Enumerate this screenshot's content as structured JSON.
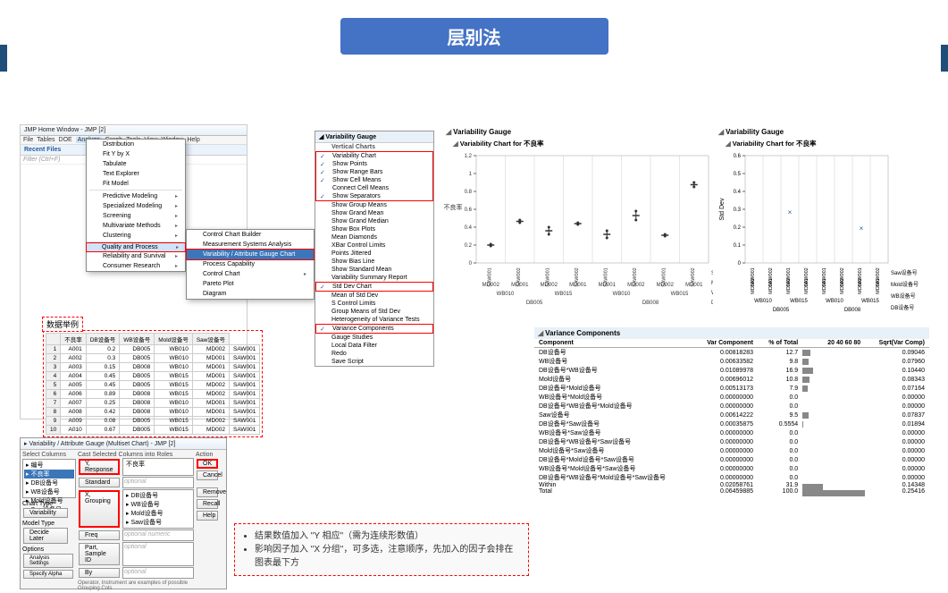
{
  "slide": {
    "title": "层别法"
  },
  "jmp_window": {
    "title": "JMP Home Window - JMP [2]",
    "menus": [
      "File",
      "Tables",
      "DOE",
      "Analyze",
      "Graph",
      "Tools",
      "View",
      "Window",
      "Help"
    ],
    "recent_label": "Recent Files",
    "filter_placeholder": "Filter (Ctrl+F)"
  },
  "analyze_menu": {
    "items": [
      "Distribution",
      "Fit Y by X",
      "Tabulate",
      "Text Explorer",
      "Fit Model",
      "",
      "Predictive Modeling",
      "Specialized Modeling",
      "Screening",
      "Multivariate Methods",
      "Clustering",
      "",
      "Quality and Process",
      "Reliability and Survival",
      "Consumer Research"
    ],
    "highlight": "Quality and Process"
  },
  "qp_submenu": {
    "items": [
      "Control Chart Builder",
      "Measurement Systems Analysis",
      "Variability / Attribute Gauge Chart",
      "Process Capability",
      "Control Chart",
      "Pareto Plot",
      "Diagram"
    ],
    "highlight": "Variability / Attribute Gauge Chart"
  },
  "var_menu": {
    "header": "Variability Gauge",
    "subheader": "Vertical Charts",
    "top_items": [
      {
        "label": "Variability Chart",
        "chk": true
      },
      {
        "label": "Show Points",
        "chk": true
      },
      {
        "label": "Show Range Bars",
        "chk": true
      },
      {
        "label": "Show Cell Means",
        "chk": true
      },
      {
        "label": "Connect Cell Means",
        "chk": false
      },
      {
        "label": "Show Separators",
        "chk": true
      }
    ],
    "mid_items": [
      "Show Group Means",
      "Show Grand Mean",
      "Show Grand Median",
      "Show Box Plots",
      "Mean Diamonds",
      "XBar Control Limits",
      "Points Jittered",
      "Show Bias Line",
      "Show Standard Mean",
      "Variability Summary Report"
    ],
    "std_item": "Std Dev Chart",
    "after_std": [
      "Mean of Std Dev",
      "S Control Limits",
      "Group Means of Std Dev",
      "Heterogeneity of Variance Tests"
    ],
    "vc_item": "Variance Components",
    "bottom_items": [
      "Gauge Studies",
      "Local Data Filter",
      "Redo",
      "Save Script"
    ]
  },
  "data_example": {
    "label": "数据举例",
    "headers": [
      "",
      "不良率",
      "DB设备号",
      "WB设备号",
      "Mold设备号",
      "Saw设备号"
    ],
    "rows": [
      [
        "1",
        "A001",
        "0.2",
        "DB005",
        "WB010",
        "MD002",
        "SAW001"
      ],
      [
        "2",
        "A002",
        "0.3",
        "DB005",
        "WB010",
        "MD001",
        "SAW001"
      ],
      [
        "3",
        "A003",
        "0.15",
        "DB008",
        "WB010",
        "MD001",
        "SAW001"
      ],
      [
        "4",
        "A004",
        "0.45",
        "DB005",
        "WB015",
        "MD001",
        "SAW001"
      ],
      [
        "5",
        "A005",
        "0.45",
        "DB005",
        "WB015",
        "MD002",
        "SAW001"
      ],
      [
        "6",
        "A006",
        "0.89",
        "DB008",
        "WB015",
        "MD002",
        "SAW001"
      ],
      [
        "7",
        "A007",
        "0.25",
        "DB008",
        "WB010",
        "MD001",
        "SAW001"
      ],
      [
        "8",
        "A008",
        "0.42",
        "DB008",
        "WB010",
        "MD001",
        "SAW001"
      ],
      [
        "9",
        "A009",
        "0.08",
        "DB005",
        "WB015",
        "MD002",
        "SAW001"
      ],
      [
        "10",
        "A010",
        "0.67",
        "DB005",
        "WB015",
        "MD002",
        "SAW001"
      ]
    ]
  },
  "chart1": {
    "title": "Variability Gauge",
    "sub": "Variability Chart for 不良率",
    "ylabel": "不良率",
    "ymin": 0,
    "ymax": 1.2,
    "yticks": [
      0,
      0.2,
      0.4,
      0.6,
      0.8,
      1,
      1.2
    ],
    "saw": [
      "SAW001",
      "SAW002",
      "SAW001",
      "SAW002",
      "SAW001",
      "SAW002",
      "SAW001",
      "SAW002"
    ],
    "mold": [
      "MD002",
      "MD001",
      "MD002",
      "MD001",
      "MD001",
      "MD002",
      "MD002",
      "MD001"
    ],
    "wb": [
      "WB010",
      "WB015",
      "WB010",
      "WB015"
    ],
    "db": [
      "DB005",
      "DB008"
    ],
    "axis_labels": [
      "Saw设备号",
      "Mold设备号",
      "WB设备号",
      "DB设备号"
    ],
    "groups": [
      [
        0.19,
        0.21
      ],
      [
        0.45,
        0.48
      ],
      [
        0.32,
        0.4
      ],
      [
        0.45,
        0.43
      ],
      [
        0.28,
        0.36
      ],
      [
        0.48,
        0.58
      ],
      [
        0.3,
        0.32
      ],
      [
        0.9,
        0.85
      ]
    ]
  },
  "chart2": {
    "title": "Variability Gauge",
    "sub": "Variability Chart for 不良率",
    "ylabel": "Std Dev",
    "ymin": 0,
    "ymax": 0.6,
    "yticks": [
      0,
      0.1,
      0.2,
      0.3,
      0.4,
      0.5,
      0.6
    ],
    "points": [
      null,
      null,
      0.28,
      null,
      null,
      null,
      0.19,
      null
    ],
    "axis_labels": [
      "Saw设备号",
      "Mold设备号",
      "WB设备号",
      "DB设备号"
    ]
  },
  "vc": {
    "title": "Variance Components",
    "headers": [
      "Component",
      "Var Component",
      "% of Total",
      "20 40 60 80",
      "Sqrt(Var Comp)"
    ],
    "rows": [
      [
        "DB设备号",
        "0.00818283",
        "12.7",
        "12.7",
        "0.09046"
      ],
      [
        "WB设备号",
        "0.00633582",
        "9.8",
        "9.8",
        "0.07960"
      ],
      [
        "DB设备号*WB设备号",
        "0.01089978",
        "16.9",
        "16.9",
        "0.10440"
      ],
      [
        "Mold设备号",
        "0.00696012",
        "10.8",
        "10.8",
        "0.08343"
      ],
      [
        "DB设备号*Mold设备号",
        "0.00513173",
        "7.9",
        "7.9",
        "0.07164"
      ],
      [
        "WB设备号*Mold设备号",
        "0.00000000",
        "0.0",
        "0",
        "0.00000"
      ],
      [
        "DB设备号*WB设备号*Mold设备号",
        "0.00000000",
        "0.0",
        "0",
        "0.00000"
      ],
      [
        "Saw设备号",
        "0.00614222",
        "9.5",
        "9.5",
        "0.07837"
      ],
      [
        "DB设备号*Saw设备号",
        "0.00035875",
        "0.5554",
        "0.5554",
        "0.01894"
      ],
      [
        "WB设备号*Saw设备号",
        "0.00000000",
        "0.0",
        "0",
        "0.00000"
      ],
      [
        "DB设备号*WB设备号*Saw设备号",
        "0.00000000",
        "0.0",
        "0",
        "0.00000"
      ],
      [
        "Mold设备号*Saw设备号",
        "0.00000000",
        "0.0",
        "0",
        "0.00000"
      ],
      [
        "DB设备号*Mold设备号*Saw设备号",
        "0.00000000",
        "0.0",
        "0",
        "0.00000"
      ],
      [
        "WB设备号*Mold设备号*Saw设备号",
        "0.00000000",
        "0.0",
        "0",
        "0.00000"
      ],
      [
        "DB设备号*WB设备号*Mold设备号*Saw设备号",
        "0.00000000",
        "0.0",
        "0",
        "0.00000"
      ],
      [
        "Within",
        "0.02058761",
        "31.9",
        "31.9",
        "0.14348"
      ],
      [
        "Total",
        "0.06459885",
        "100.0",
        "100",
        "0.25416"
      ]
    ]
  },
  "dialog": {
    "select_label": "Select Columns",
    "cast_label": "Cast Selected Columns into Roles",
    "action_label": "Action",
    "columns": [
      "编号",
      "不良率",
      "DB设备号",
      "WB设备号",
      "Mold设备号",
      "Saw设备号"
    ],
    "y_response": "Y, Response",
    "y_value": "不良率",
    "standard": "Standard",
    "std_placeholder": "optional",
    "x_grouping": "X, Grouping",
    "x_values": [
      "DB设备号",
      "WB设备号",
      "Mold设备号",
      "Saw设备号"
    ],
    "freq": "Freq",
    "part": "Part, Sample ID",
    "by": "By",
    "chart_type_lbl": "Chart Type",
    "chart_type": "Variability",
    "model_type_lbl": "Model Type",
    "model_type": "Decide Later",
    "options": "Options",
    "analysis_settings": "Analysis Settings",
    "specify_alpha": "Specify Alpha",
    "hint": "Operator, Instrument are examples of possible Grouping Cols",
    "buttons": {
      "ok": "OK",
      "cancel": "Cancel",
      "remove": "Remove",
      "recall": "Recall",
      "help": "Help"
    }
  },
  "notes": {
    "items": [
      "结果数值加入 \"Y 相应\"（需为连续形数值）",
      "影响因子加入 \"X 分组\"，可多选，注意顺序，先加入的因子会排在图表最下方"
    ]
  },
  "colors": {
    "accent": "#4472c4",
    "red": "#e02020",
    "point": "#2a5a9a"
  }
}
